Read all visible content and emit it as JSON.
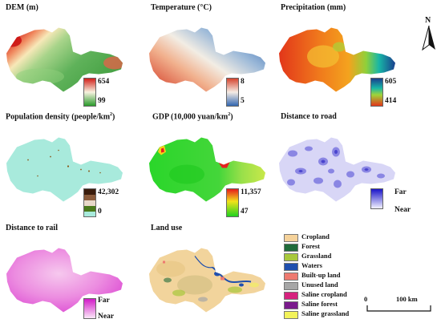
{
  "panels": {
    "dem": {
      "title": "DEM (m)",
      "max": "654",
      "min": "99"
    },
    "temperature": {
      "title": "Temperature (°C)",
      "max": "8",
      "min": "5"
    },
    "precipitation": {
      "title": "Precipitation (mm)",
      "max": "605",
      "min": "414"
    },
    "population": {
      "title": "Population density (people/km",
      "title_sup": "2",
      "title_end": ")",
      "max": "42,302",
      "min": "0"
    },
    "gdp": {
      "title": "GDP (10,000 yuan/km",
      "title_sup": "2",
      "title_end": ")",
      "max": "11,357",
      "min": "47"
    },
    "road": {
      "title": "Distance to road",
      "max": "Far",
      "min": "Near"
    },
    "rail": {
      "title": "Distance to rail",
      "max": "Far",
      "min": "Near"
    },
    "landuse": {
      "title": "Land use"
    }
  },
  "landuse_legend": [
    {
      "label": "Cropland",
      "color": "#f5d29a"
    },
    {
      "label": "Forest",
      "color": "#1f6b3a"
    },
    {
      "label": "Grassland",
      "color": "#a8c83c"
    },
    {
      "label": "Waters",
      "color": "#1f4fae"
    },
    {
      "label": "Built-up land",
      "color": "#ee7a70"
    },
    {
      "label": "Unused land",
      "color": "#a6a6a6"
    },
    {
      "label": "Saline cropland",
      "color": "#d6227e"
    },
    {
      "label": "Saline forest",
      "color": "#7a1a8c"
    },
    {
      "label": "Saline grassland",
      "color": "#f2f25a"
    }
  ],
  "north_label": "N",
  "scale": {
    "start": "0",
    "end": "100 km"
  }
}
